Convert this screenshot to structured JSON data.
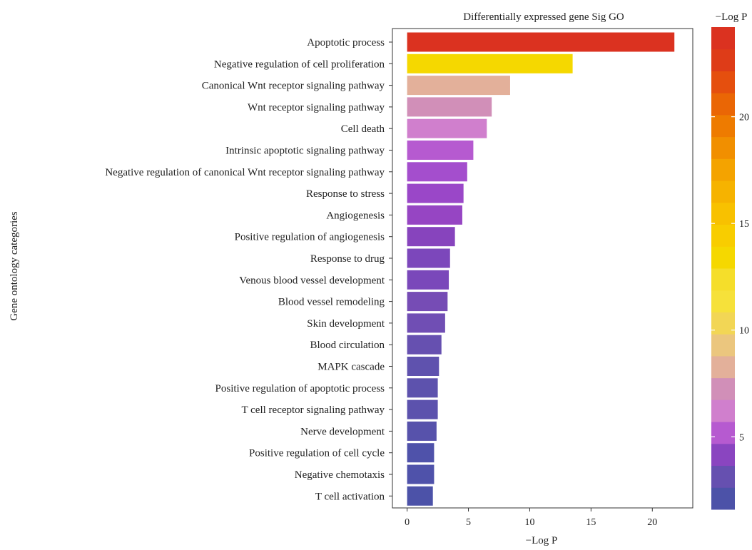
{
  "chart_data": {
    "type": "bar",
    "orientation": "horizontal",
    "title": "Differentially expressed gene Sig GO",
    "xlabel": "−Log P",
    "ylabel": "Gene ontology categories",
    "xlim": [
      -1.2,
      23.3
    ],
    "xticks": [
      0,
      5,
      10,
      15,
      20
    ],
    "grid": false,
    "categories": [
      "Apoptotic process",
      "Negative regulation of cell proliferation",
      "Canonical Wnt receptor signaling pathway",
      "Wnt receptor signaling pathway",
      "Cell death",
      "Intrinsic apoptotic signaling pathway",
      "Negative regulation of canonical Wnt receptor signaling pathway",
      "Response to stress",
      "Angiogenesis",
      "Positive regulation of angiogenesis",
      "Response to drug",
      "Venous blood vessel development",
      "Blood vessel remodeling",
      "Skin development",
      "Blood circulation",
      "MAPK cascade",
      "Positive regulation of apoptotic process",
      "T cell receptor signaling pathway",
      "Nerve development",
      "Positive regulation of cell cycle",
      "Negative chemotaxis",
      "T cell activation"
    ],
    "values": [
      21.8,
      13.5,
      8.4,
      6.9,
      6.5,
      5.4,
      4.9,
      4.6,
      4.5,
      3.9,
      3.5,
      3.4,
      3.3,
      3.1,
      2.8,
      2.6,
      2.5,
      2.5,
      2.4,
      2.2,
      2.2,
      2.1
    ],
    "bar_colors": [
      "#db3220",
      "#f5d800",
      "#e3b09a",
      "#d18fb8",
      "#d07fcd",
      "#b65ad0",
      "#a44ecd",
      "#9a47c8",
      "#9645c3",
      "#8744bd",
      "#7c47bb",
      "#7a48ba",
      "#764cb5",
      "#704eb4",
      "#6650b0",
      "#5f52ae",
      "#5d52ad",
      "#5c52ad",
      "#5752ab",
      "#4f52aa",
      "#4f52aa",
      "#4c52a8"
    ],
    "legend": {
      "title": "−Log P",
      "placement": "right",
      "type": "colorbar",
      "ticks": [
        5,
        10,
        15,
        20
      ],
      "colors": [
        "#4c52a8",
        "#6650b0",
        "#8a45c0",
        "#b65ad0",
        "#d07fcd",
        "#d18fb8",
        "#e3b09a",
        "#ebc67e",
        "#f2d655",
        "#f6e13a",
        "#f5de2a",
        "#f5d800",
        "#f8cd00",
        "#f8c100",
        "#f6b300",
        "#f4a300",
        "#f18f00",
        "#ee7b00",
        "#ea6605",
        "#e54f0e",
        "#de3c18",
        "#db3220"
      ]
    }
  }
}
